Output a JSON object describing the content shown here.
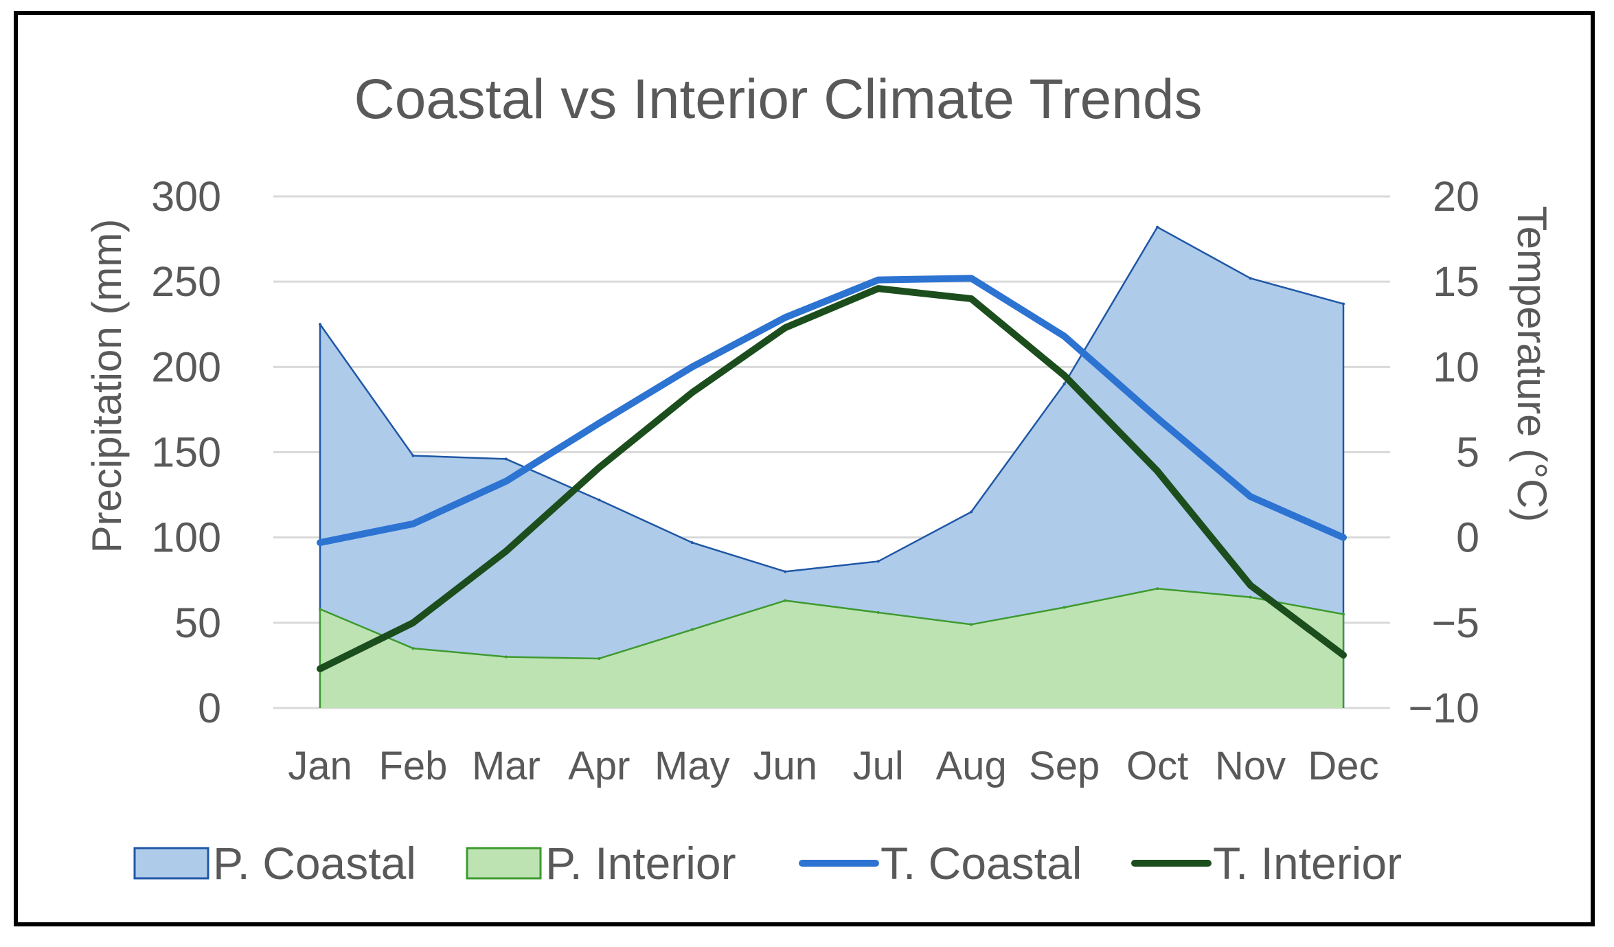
{
  "chart_data": {
    "type": "area+line",
    "title": "Coastal vs Interior Climate Trends",
    "categories": [
      "Jan",
      "Feb",
      "Mar",
      "Apr",
      "May",
      "Jun",
      "Jul",
      "Aug",
      "Sep",
      "Oct",
      "Nov",
      "Dec"
    ],
    "y_left": {
      "label": "Precipitation (mm)",
      "lim": [
        0,
        300
      ],
      "ticks": [
        0,
        50,
        100,
        150,
        200,
        250,
        300
      ]
    },
    "y_right": {
      "label": "Temperature (°C)",
      "lim": [
        -10,
        20
      ],
      "ticks": [
        -10,
        -5,
        0,
        5,
        10,
        15,
        20
      ]
    },
    "grid": true,
    "legend_position": "bottom",
    "series": [
      {
        "name": "P. Coastal",
        "type": "area",
        "axis": "left",
        "values": [
          225,
          148,
          146,
          122,
          97,
          80,
          86,
          115,
          190,
          282,
          252,
          237
        ],
        "color": "#aecbea",
        "stroke": "#1f57a6"
      },
      {
        "name": "P. Interior",
        "type": "area",
        "axis": "left",
        "values": [
          58,
          35,
          30,
          29,
          46,
          63,
          56,
          49,
          59,
          70,
          65,
          55
        ],
        "color": "#bde3b3",
        "stroke": "#3e9a2f"
      },
      {
        "name": "T. Coastal",
        "type": "line",
        "axis": "right",
        "values": [
          -0.3,
          0.8,
          3.3,
          6.7,
          10.0,
          12.9,
          15.1,
          15.2,
          11.8,
          7.0,
          2.4,
          0.0
        ],
        "color": "#2c73d2"
      },
      {
        "name": "T. Interior",
        "type": "line",
        "axis": "right",
        "values": [
          -7.7,
          -5.0,
          -0.8,
          4.1,
          8.5,
          12.3,
          14.6,
          14.0,
          9.5,
          3.9,
          -2.8,
          -6.9
        ],
        "color": "#1c4e1d"
      }
    ]
  }
}
